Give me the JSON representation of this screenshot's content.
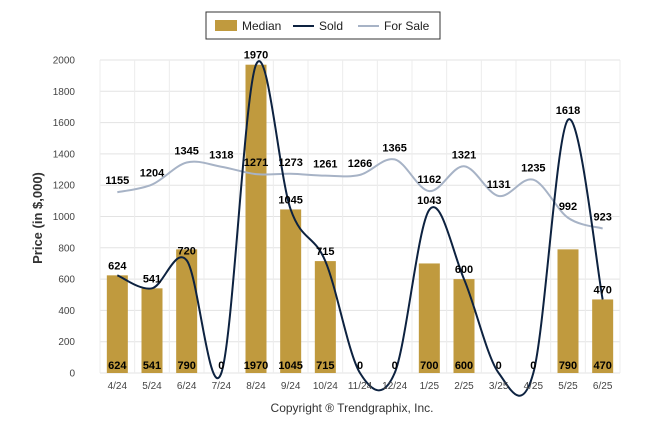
{
  "chart_data": {
    "type": "bar",
    "ylabel": "Price (in $,000)",
    "xlabel": "",
    "ylim": [
      0,
      2000
    ],
    "yticks": [
      "0",
      "200",
      "400",
      "600",
      "800",
      "1000",
      "1200",
      "1400",
      "1600",
      "1800",
      "2000"
    ],
    "grid": true,
    "legend_position": "top-center",
    "categories": [
      "4/24",
      "5/24",
      "6/24",
      "7/24",
      "8/24",
      "9/24",
      "10/24",
      "11/24",
      "12/24",
      "1/25",
      "2/25",
      "3/25",
      "4/25",
      "5/25",
      "6/25"
    ],
    "series": [
      {
        "name": "Median",
        "type": "bar",
        "color": "#c09a3e",
        "values": [
          624,
          541,
          790,
          0,
          1970,
          1045,
          715,
          0,
          0,
          700,
          600,
          0,
          0,
          790,
          470
        ],
        "labels": [
          "624",
          "541",
          "790",
          "0",
          "1970",
          "1045",
          "715",
          "0",
          "0",
          "700",
          "600",
          "0",
          "0",
          "790",
          "470"
        ]
      },
      {
        "name": "Sold",
        "type": "line",
        "color": "#0d2240",
        "values": [
          624,
          541,
          720,
          0,
          1970,
          1045,
          715,
          0,
          0,
          1043,
          600,
          0,
          0,
          1618,
          470
        ],
        "labels": [
          "624",
          "541",
          "720",
          "0",
          "1970",
          "1045",
          "715",
          "0",
          "0",
          "1043",
          "600",
          "0",
          "0",
          "1618",
          "470"
        ]
      },
      {
        "name": "For Sale",
        "type": "line",
        "color": "#a7b3c6",
        "values": [
          1155,
          1204,
          1345,
          1318,
          1271,
          1273,
          1261,
          1266,
          1365,
          1162,
          1321,
          1131,
          1235,
          992,
          923
        ],
        "labels": [
          "1155",
          "1204",
          "1345",
          "1318",
          "1271",
          "1273",
          "1261",
          "1266",
          "1365",
          "1162",
          "1321",
          "1131",
          "1235",
          "992",
          "923"
        ]
      }
    ]
  },
  "footer": {
    "copyright": "Copyright ® Trendgraphix, Inc."
  }
}
